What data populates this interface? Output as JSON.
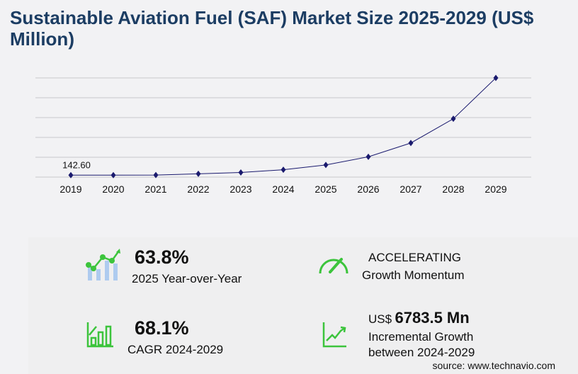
{
  "chart_data": {
    "type": "line",
    "title": "Sustainable Aviation Fuel (SAF) Market Size 2025-2029 (US$ Million)",
    "categories": [
      "2019",
      "2020",
      "2021",
      "2022",
      "2023",
      "2024",
      "2025",
      "2026",
      "2027",
      "2028",
      "2029"
    ],
    "series": [
      {
        "values": [
          142.6,
          143,
          150,
          240,
          340,
          546,
          894,
          1500,
          2520,
          4310,
          7330
        ]
      }
    ],
    "data_labels": [
      {
        "index": 0,
        "text": "142.60"
      }
    ],
    "ylim": [
      0,
      7400
    ],
    "grid": true,
    "line_color": "#1a1a6e"
  },
  "kpis": {
    "yoy": {
      "value": "63.8%",
      "label": "2025 Year-over-Year"
    },
    "momentum": {
      "value": "ACCELERATING",
      "label": "Growth Momentum"
    },
    "cagr": {
      "value": "68.1%",
      "label": "CAGR 2024-2029"
    },
    "incremental": {
      "prefix": "US$",
      "value": "6783.5 Mn",
      "label1": "Incremental Growth",
      "label2": "between 2024-2029"
    }
  },
  "source": "source: www.technavio.com",
  "colors": {
    "accent": "#3cc43c",
    "bars": "#aecbef",
    "title": "#1c3d63"
  }
}
